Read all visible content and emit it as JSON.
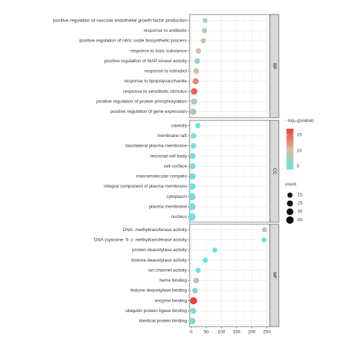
{
  "chart_data": {
    "type": "scatter",
    "subtype": "faceted dot plot",
    "x_ticks": [
      0,
      50,
      100,
      150,
      200,
      250
    ],
    "xlim": [
      -5,
      260
    ],
    "grid": true,
    "legend_position": "right",
    "color_scale": {
      "title": "- log₁₀(pvalue)",
      "low_color": "#66e3e3",
      "high_color": "#e8403a",
      "range": [
        4,
        17
      ],
      "ticks": [
        5,
        10,
        15
      ]
    },
    "size_scale": {
      "title": "count",
      "breaks": [
        15,
        25,
        35,
        45
      ]
    },
    "facets": [
      {
        "strip": "BP",
        "points": [
          {
            "term": "positive regulation of vascular endothelial growth factor production",
            "x": 46,
            "count": 13,
            "pvalue_log": 8
          },
          {
            "term": "response to antibiotic",
            "x": 44,
            "count": 14,
            "pvalue_log": 8
          },
          {
            "term": "positive regulation of nitric oxide biosynthetic process",
            "x": 40,
            "count": 14,
            "pvalue_log": 10
          },
          {
            "term": "response to toxic substance",
            "x": 24,
            "count": 18,
            "pvalue_log": 10
          },
          {
            "term": "positive regulation of MAP kinase activity",
            "x": 20,
            "count": 20,
            "pvalue_log": 7
          },
          {
            "term": "response to estradiol",
            "x": 17,
            "count": 20,
            "pvalue_log": 9
          },
          {
            "term": "response to lipopolysaccharide",
            "x": 15,
            "count": 26,
            "pvalue_log": 13
          },
          {
            "term": "response to xenobiotic stimulus",
            "x": 10,
            "count": 32,
            "pvalue_log": 15
          },
          {
            "term": "positive regulation of protein phosphorylation",
            "x": 10,
            "count": 26,
            "pvalue_log": 8
          },
          {
            "term": "positive regulation of gene expression",
            "x": 7,
            "count": 30,
            "pvalue_log": 8
          }
        ]
      },
      {
        "strip": "CC",
        "points": [
          {
            "term": "caveola",
            "x": 22,
            "count": 16,
            "pvalue_log": 5
          },
          {
            "term": "membrane raft",
            "x": 8,
            "count": 20,
            "pvalue_log": 5
          },
          {
            "term": "basolateral plasma membrane",
            "x": 8,
            "count": 19,
            "pvalue_log": 5
          },
          {
            "term": "neuronal cell body",
            "x": 5,
            "count": 22,
            "pvalue_log": 5
          },
          {
            "term": "cell surface",
            "x": 5,
            "count": 24,
            "pvalue_log": 5
          },
          {
            "term": "macromolecular complex",
            "x": 5,
            "count": 26,
            "pvalue_log": 5
          },
          {
            "term": "integral component of plasma membrane",
            "x": 4,
            "count": 30,
            "pvalue_log": 5
          },
          {
            "term": "cytoplasm",
            "x": 3,
            "count": 44,
            "pvalue_log": 6
          },
          {
            "term": "plasma membrane",
            "x": 3,
            "count": 42,
            "pvalue_log": 5
          },
          {
            "term": "nucleus",
            "x": 2,
            "count": 45,
            "pvalue_log": 5
          }
        ]
      },
      {
        "strip": "MF",
        "points": [
          {
            "term": "DNA- methyltransferase activity",
            "x": 242,
            "count": 13,
            "pvalue_log": 8
          },
          {
            "term": "DNA (cytosine- 5- )- methyltransferase activity",
            "x": 240,
            "count": 11,
            "pvalue_log": 4
          },
          {
            "term": "protein deacetylase activity",
            "x": 78,
            "count": 13,
            "pvalue_log": 4
          },
          {
            "term": "histone deacetylase activity",
            "x": 47,
            "count": 14,
            "pvalue_log": 4
          },
          {
            "term": "ion channel activity",
            "x": 23,
            "count": 15,
            "pvalue_log": 5
          },
          {
            "term": "heme binding",
            "x": 17,
            "count": 20,
            "pvalue_log": 9
          },
          {
            "term": "histone deacetylase binding",
            "x": 13,
            "count": 20,
            "pvalue_log": 7
          },
          {
            "term": "enzyme binding",
            "x": 8,
            "count": 40,
            "pvalue_log": 17
          },
          {
            "term": "ubiquitin protein ligase binding",
            "x": 7,
            "count": 24,
            "pvalue_log": 6
          },
          {
            "term": "identical protein binding",
            "x": 4,
            "count": 32,
            "pvalue_log": 6
          }
        ]
      }
    ]
  }
}
